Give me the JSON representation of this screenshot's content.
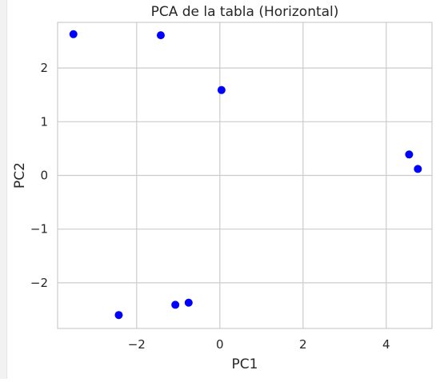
{
  "chart_data": {
    "type": "scatter",
    "title": "PCA de la tabla (Horizontal)",
    "xlabel": "PC1",
    "ylabel": "PC2",
    "xlim": [
      -3.9,
      5.1
    ],
    "ylim": [
      -2.85,
      2.85
    ],
    "x_ticks": [
      -2,
      0,
      2,
      4
    ],
    "x_tick_labels": [
      "−2",
      "0",
      "2",
      "4"
    ],
    "y_ticks": [
      -2,
      -1,
      0,
      1,
      2
    ],
    "y_tick_labels": [
      "−2",
      "−1",
      "0",
      "1",
      "2"
    ],
    "grid": true,
    "marker_color": "#0000ff",
    "points": [
      {
        "x": -3.52,
        "y": 2.63
      },
      {
        "x": -1.42,
        "y": 2.61
      },
      {
        "x": 0.04,
        "y": 1.59
      },
      {
        "x": 4.55,
        "y": 0.39
      },
      {
        "x": 4.76,
        "y": 0.12
      },
      {
        "x": -2.43,
        "y": -2.6
      },
      {
        "x": -1.07,
        "y": -2.41
      },
      {
        "x": -0.75,
        "y": -2.37
      }
    ]
  }
}
